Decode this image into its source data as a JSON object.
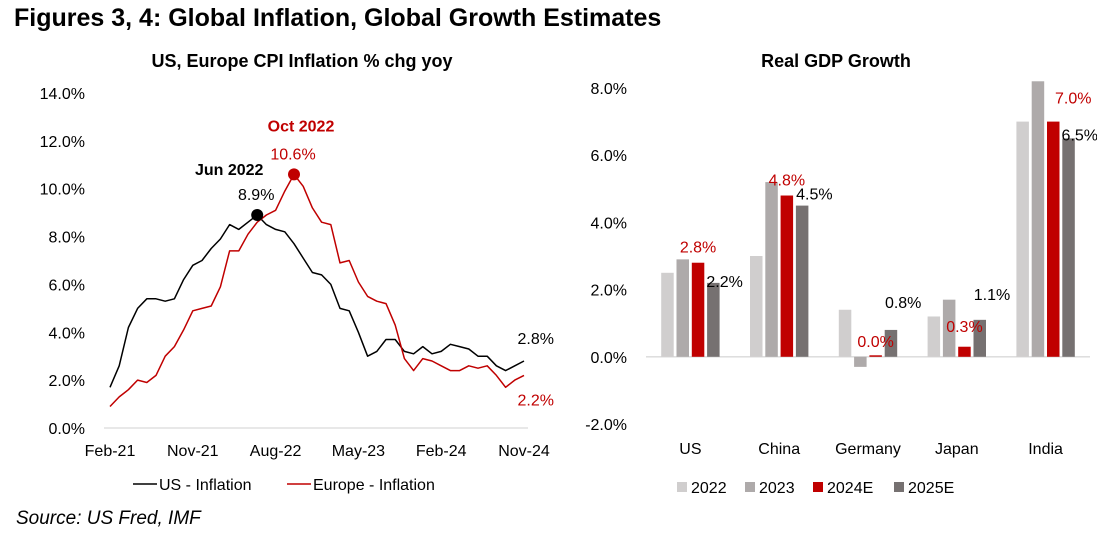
{
  "figure_title": "Figures 3, 4: Global Inflation, Global Growth Estimates",
  "source": "Source: US Fred, IMF",
  "colors": {
    "us": "#000000",
    "europe": "#c00000",
    "grid": "#d9d9d9",
    "bar_2022": "#d0cece",
    "bar_2023": "#aeaaaa",
    "bar_2024E": "#c00000",
    "bar_2025E": "#767171",
    "label_red": "#c00000",
    "label_black": "#000000"
  },
  "chart_data": [
    {
      "type": "line",
      "title": "US, Europe CPI Inflation % chg yoy",
      "xlabel": "",
      "ylabel": "",
      "ylim": [
        0,
        14
      ],
      "yticks": [
        "0.0%",
        "2.0%",
        "4.0%",
        "6.0%",
        "8.0%",
        "10.0%",
        "12.0%",
        "14.0%"
      ],
      "ytick_values": [
        0,
        2,
        4,
        6,
        8,
        10,
        12,
        14
      ],
      "xticks": [
        "Feb-21",
        "Nov-21",
        "Aug-22",
        "May-23",
        "Feb-24",
        "Nov-24"
      ],
      "xtick_index": [
        0,
        9,
        18,
        27,
        36,
        45
      ],
      "x_start": "Feb-21",
      "x_end": "Nov-24",
      "grid": false,
      "legend": "bottom",
      "series": [
        {
          "name": "US - Inflation",
          "color_key": "us",
          "values": [
            1.7,
            2.6,
            4.2,
            5.0,
            5.4,
            5.4,
            5.3,
            5.4,
            6.2,
            6.8,
            7.0,
            7.5,
            7.9,
            8.5,
            8.3,
            8.6,
            8.9,
            8.5,
            8.3,
            8.2,
            7.7,
            7.1,
            6.5,
            6.4,
            6.0,
            5.0,
            4.9,
            4.0,
            3.0,
            3.2,
            3.7,
            3.7,
            3.2,
            3.1,
            3.4,
            3.1,
            3.2,
            3.5,
            3.4,
            3.3,
            3.0,
            3.0,
            2.6,
            2.4,
            2.6,
            2.8
          ]
        },
        {
          "name": "Europe - Inflation",
          "color_key": "europe",
          "values": [
            0.9,
            1.3,
            1.6,
            2.0,
            1.9,
            2.2,
            3.0,
            3.4,
            4.1,
            4.9,
            5.0,
            5.1,
            5.9,
            7.4,
            7.4,
            8.1,
            8.6,
            8.9,
            9.1,
            9.9,
            10.6,
            10.1,
            9.2,
            8.6,
            8.5,
            6.9,
            7.0,
            6.1,
            5.5,
            5.3,
            5.2,
            4.3,
            2.9,
            2.4,
            2.9,
            2.8,
            2.6,
            2.4,
            2.4,
            2.6,
            2.5,
            2.6,
            2.2,
            1.7,
            2.0,
            2.2
          ]
        }
      ],
      "annotations": [
        {
          "series": 0,
          "index": 16,
          "date_label": "Jun 2022",
          "value_label": "8.9%",
          "marker": true
        },
        {
          "series": 1,
          "index": 20,
          "date_label": "Oct 2022",
          "value_label": "10.6%",
          "marker": true
        },
        {
          "series": 0,
          "index": 45,
          "value_label": "2.8%"
        },
        {
          "series": 1,
          "index": 45,
          "value_label": "2.2%"
        }
      ]
    },
    {
      "type": "bar",
      "title": "Real GDP Growth",
      "xlabel": "",
      "ylabel": "",
      "ylim": [
        -2,
        8
      ],
      "yticks": [
        "-2.0%",
        "0.0%",
        "2.0%",
        "4.0%",
        "6.0%",
        "8.0%"
      ],
      "ytick_values": [
        -2,
        0,
        2,
        4,
        6,
        8
      ],
      "categories": [
        "US",
        "China",
        "Germany",
        "Japan",
        "India"
      ],
      "grid": false,
      "legend": "bottom",
      "series": [
        {
          "name": "2022",
          "color_key": "bar_2022",
          "values": [
            2.5,
            3.0,
            1.4,
            1.2,
            7.0
          ]
        },
        {
          "name": "2023",
          "color_key": "bar_2023",
          "values": [
            2.9,
            5.2,
            -0.3,
            1.7,
            8.2
          ]
        },
        {
          "name": "2024E",
          "color_key": "bar_2024E",
          "values": [
            2.8,
            4.8,
            0.0,
            0.3,
            7.0
          ]
        },
        {
          "name": "2025E",
          "color_key": "bar_2025E",
          "values": [
            2.2,
            4.5,
            0.8,
            1.1,
            6.5
          ]
        }
      ],
      "data_labels": [
        {
          "category": 0,
          "series": 2,
          "text": "2.8%",
          "color_key": "label_red"
        },
        {
          "category": 0,
          "series": 3,
          "text": "2.2%",
          "color_key": "label_black"
        },
        {
          "category": 1,
          "series": 2,
          "text": "4.8%",
          "color_key": "label_red"
        },
        {
          "category": 1,
          "series": 3,
          "text": "4.5%",
          "color_key": "label_black"
        },
        {
          "category": 2,
          "series": 2,
          "text": "0.0%",
          "color_key": "label_red"
        },
        {
          "category": 2,
          "series": 3,
          "text": "0.8%",
          "color_key": "label_black"
        },
        {
          "category": 3,
          "series": 2,
          "text": "0.3%",
          "color_key": "label_red"
        },
        {
          "category": 3,
          "series": 3,
          "text": "1.1%",
          "color_key": "label_black"
        },
        {
          "category": 4,
          "series": 2,
          "text": "7.0%",
          "color_key": "label_red"
        },
        {
          "category": 4,
          "series": 3,
          "text": "6.5%",
          "color_key": "label_black"
        }
      ]
    }
  ]
}
